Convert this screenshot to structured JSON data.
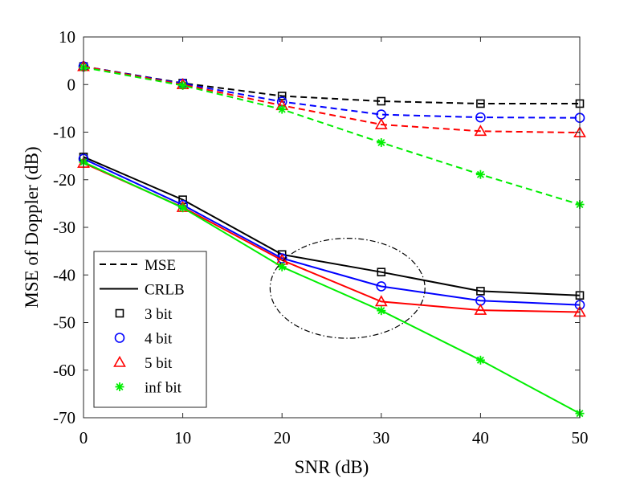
{
  "chart_data": {
    "type": "line",
    "title": "",
    "xlabel": "SNR (dB)",
    "ylabel": "MSE of Doppler (dB)",
    "xlim": [
      0,
      50
    ],
    "ylim": [
      -70,
      10
    ],
    "xticks": [
      0,
      10,
      20,
      30,
      40,
      50
    ],
    "yticks": [
      10,
      0,
      -10,
      -20,
      -30,
      -40,
      -50,
      -60,
      -70
    ],
    "grid": false,
    "legend_position": "bottom-left",
    "x": [
      0,
      10,
      20,
      30,
      40,
      50
    ],
    "series": [
      {
        "name": "3 bit",
        "kind": "MSE",
        "style": "dashed",
        "color": "#000000",
        "marker": "square",
        "values": [
          3.8,
          0.3,
          -2.4,
          -3.5,
          -4.0,
          -4.0
        ]
      },
      {
        "name": "4 bit",
        "kind": "MSE",
        "style": "dashed",
        "color": "#0000ff",
        "marker": "circle",
        "values": [
          3.8,
          0.2,
          -3.6,
          -6.3,
          -6.9,
          -7.0
        ]
      },
      {
        "name": "5 bit",
        "kind": "MSE",
        "style": "dashed",
        "color": "#ff0000",
        "marker": "triangle",
        "values": [
          3.8,
          0.0,
          -4.4,
          -8.4,
          -9.8,
          -10.1
        ]
      },
      {
        "name": "inf bit",
        "kind": "MSE",
        "style": "dashed",
        "color": "#00ee00",
        "marker": "star",
        "values": [
          3.6,
          -0.2,
          -5.2,
          -12.2,
          -18.9,
          -25.2
        ]
      },
      {
        "name": "3 bit",
        "kind": "CRLB",
        "style": "solid",
        "color": "#000000",
        "marker": "square",
        "values": [
          -15.2,
          -24.2,
          -35.7,
          -39.4,
          -43.4,
          -44.3
        ]
      },
      {
        "name": "4 bit",
        "kind": "CRLB",
        "style": "solid",
        "color": "#0000ff",
        "marker": "circle",
        "values": [
          -15.6,
          -25.3,
          -36.5,
          -42.4,
          -45.4,
          -46.3
        ]
      },
      {
        "name": "5 bit",
        "kind": "CRLB",
        "style": "solid",
        "color": "#ff0000",
        "marker": "triangle",
        "values": [
          -16.5,
          -25.8,
          -36.9,
          -45.6,
          -47.4,
          -47.8
        ]
      },
      {
        "name": "inf bit",
        "kind": "CRLB",
        "style": "solid",
        "color": "#00ee00",
        "marker": "star",
        "values": [
          -16.3,
          -25.9,
          -38.3,
          -47.5,
          -57.9,
          -69.1
        ]
      }
    ],
    "annotations": [
      {
        "type": "ellipse",
        "style": "dash-dot",
        "description": "highlight of divergence region",
        "center": [
          26.6,
          -42.8
        ],
        "radius_x": 7.8,
        "radius_y": 10.5
      }
    ],
    "legend": [
      {
        "label": "MSE",
        "line": "dashed",
        "color": "#000000"
      },
      {
        "label": "CRLB",
        "line": "solid",
        "color": "#000000"
      },
      {
        "label": "3 bit",
        "marker": "square",
        "color": "#000000"
      },
      {
        "label": "4 bit",
        "marker": "circle",
        "color": "#0000ff"
      },
      {
        "label": "5 bit",
        "marker": "triangle",
        "color": "#ff0000"
      },
      {
        "label": "inf bit",
        "marker": "star",
        "color": "#00ee00"
      }
    ]
  }
}
